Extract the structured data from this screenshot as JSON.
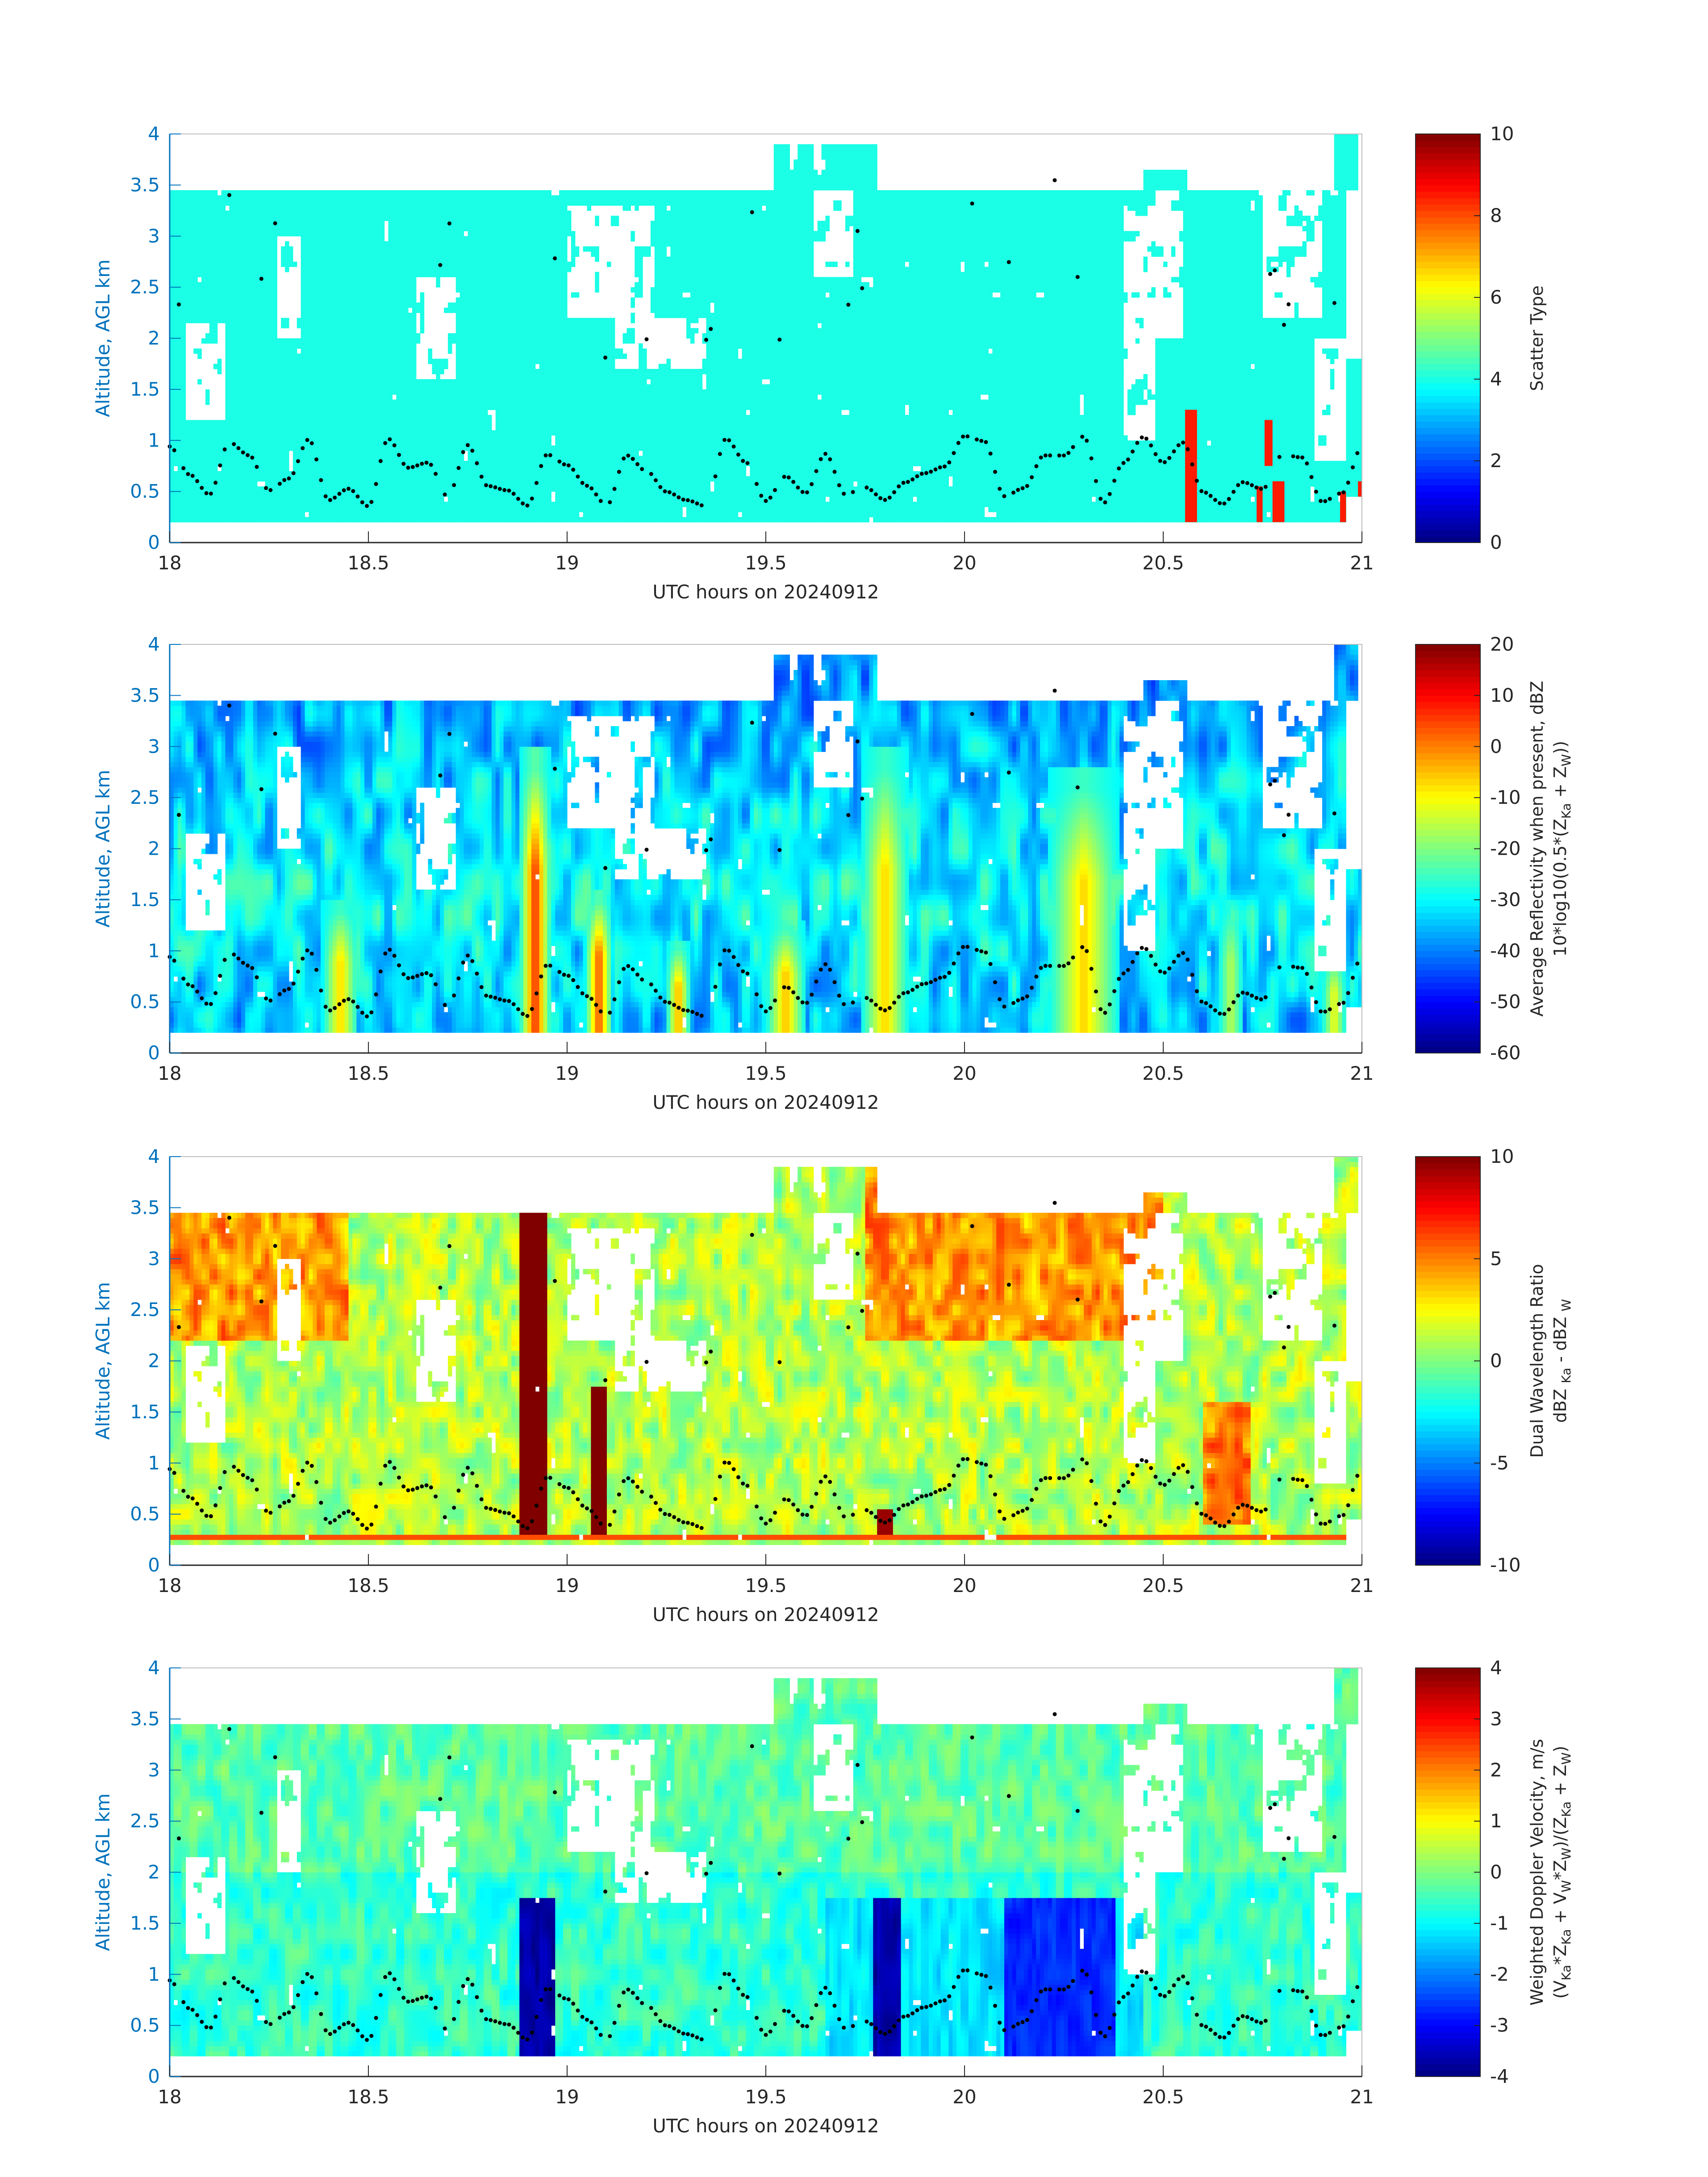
{
  "figure": {
    "panels": [
      {
        "id": "scatter-type",
        "xlabel": "UTC hours on 20240912",
        "ylabel": "Altitude, AGL km",
        "cbar_lines": [
          [
            {
              "t": "Scatter Type"
            }
          ]
        ],
        "cbar_ticks": [
          0,
          2,
          4,
          6,
          8,
          10
        ],
        "clim": [
          0,
          10
        ]
      },
      {
        "id": "reflectivity",
        "xlabel": "UTC hours on 20240912",
        "ylabel": "Altitude, AGL km",
        "cbar_lines": [
          [
            {
              "t": "Average Reflectivity when present, dBZ"
            }
          ],
          [
            {
              "t": "10*log10(0.5*(Z"
            },
            {
              "t": "Ka",
              "s": "sub"
            },
            {
              "t": " + Z"
            },
            {
              "t": "W",
              "s": "sub"
            },
            {
              "t": "))"
            }
          ]
        ],
        "cbar_ticks": [
          -60,
          -50,
          -40,
          -30,
          -20,
          -10,
          0,
          10,
          20
        ],
        "clim": [
          -60,
          20
        ]
      },
      {
        "id": "dwr",
        "xlabel": "UTC hours on 20240912",
        "ylabel": "Altitude, AGL km",
        "cbar_lines": [
          [
            {
              "t": "Dual Wavelength Ratio"
            }
          ],
          [
            {
              "t": "dBZ "
            },
            {
              "t": "Ka",
              "s": "sub"
            },
            {
              "t": " - dBZ "
            },
            {
              "t": "W",
              "s": "sub"
            }
          ]
        ],
        "cbar_ticks": [
          -10,
          -5,
          0,
          5,
          10
        ],
        "clim": [
          -10,
          10
        ]
      },
      {
        "id": "doppler",
        "xlabel": "UTC hours on 20240912",
        "ylabel": "Altitude, AGL km",
        "cbar_lines": [
          [
            {
              "t": "Weighted Doppler Velocity, m/s"
            }
          ],
          [
            {
              "t": "(V"
            },
            {
              "t": "Ka",
              "s": "sub"
            },
            {
              "t": "*Z"
            },
            {
              "t": "Ka",
              "s": "sub"
            },
            {
              "t": " + V"
            },
            {
              "t": "W",
              "s": "sub"
            },
            {
              "t": "*Z"
            },
            {
              "t": "W",
              "s": "sub"
            },
            {
              "t": ")/(Z"
            },
            {
              "t": "Ka",
              "s": "sub"
            },
            {
              "t": " + Z"
            },
            {
              "t": "W",
              "s": "sub"
            },
            {
              "t": ")"
            }
          ]
        ],
        "cbar_ticks": [
          -4,
          -3,
          -2,
          -1,
          0,
          1,
          2,
          3,
          4
        ],
        "clim": [
          -4,
          4
        ]
      }
    ]
  },
  "chart_data": [
    {
      "type": "heatmap",
      "xlabel": "UTC hours on 20240912",
      "ylabel": "Altitude, AGL km",
      "xlim": [
        18,
        21
      ],
      "ylim": [
        0,
        4
      ],
      "xticks": [
        18,
        18.5,
        19,
        19.5,
        20,
        20.5,
        21
      ],
      "yticks": [
        0,
        0.5,
        1,
        1.5,
        2,
        2.5,
        3,
        3.5,
        4
      ],
      "colorbar_label": "Scatter Type",
      "clim": [
        0,
        10
      ],
      "colormap": "jet",
      "dominant_value": 4,
      "echo_base_km": 0.2,
      "echo_top_km": 3.45,
      "high_value_columns": [
        {
          "x": [
            20.555,
            20.585
          ],
          "y": [
            0.2,
            1.3
          ],
          "value": 8.5
        },
        {
          "x": [
            20.735,
            20.75
          ],
          "y": [
            0.2,
            0.55
          ],
          "value": 8.5
        },
        {
          "x": [
            20.755,
            20.775
          ],
          "y": [
            0.75,
            1.2
          ],
          "value": 8.5
        },
        {
          "x": [
            20.775,
            20.805
          ],
          "y": [
            0.2,
            0.6
          ],
          "value": 8.5
        },
        {
          "x": [
            20.945,
            20.96
          ],
          "y": [
            0.2,
            0.5
          ],
          "value": 8.5
        },
        {
          "x": [
            20.99,
            21.0
          ],
          "y": [
            0.45,
            0.6
          ],
          "value": 8.5
        }
      ],
      "overlay": "black dots: cloud-base track"
    },
    {
      "type": "heatmap",
      "xlabel": "UTC hours on 20240912",
      "ylabel": "Altitude, AGL km",
      "xlim": [
        18,
        21
      ],
      "ylim": [
        0,
        4
      ],
      "xticks": [
        18,
        18.5,
        19,
        19.5,
        20,
        20.5,
        21
      ],
      "yticks": [
        0,
        0.5,
        1,
        1.5,
        2,
        2.5,
        3,
        3.5,
        4
      ],
      "colorbar_label": "Average Reflectivity when present, dBZ 10*log10(0.5*(ZKa + ZW))",
      "clim": [
        -60,
        20
      ],
      "colormap": "jet",
      "background_value": -38,
      "features": [
        {
          "x": 18.43,
          "half_width": 0.045,
          "top_km": 1.5,
          "peak": -6
        },
        {
          "x": 18.92,
          "half_width": 0.04,
          "top_km": 3.0,
          "peak": 8
        },
        {
          "x": 19.08,
          "half_width": 0.035,
          "top_km": 1.6,
          "peak": 5
        },
        {
          "x": 19.28,
          "half_width": 0.03,
          "top_km": 1.1,
          "peak": -2
        },
        {
          "x": 19.55,
          "half_width": 0.05,
          "top_km": 1.3,
          "peak": -4
        },
        {
          "x": 19.8,
          "half_width": 0.06,
          "top_km": 3.0,
          "peak": -6
        },
        {
          "x": 20.3,
          "half_width": 0.09,
          "top_km": 2.8,
          "peak": -6
        },
        {
          "x": 20.67,
          "half_width": 0.03,
          "top_km": 1.5,
          "peak": -15
        },
        {
          "x": 20.93,
          "half_width": 0.03,
          "top_km": 1.0,
          "peak": -10
        }
      ],
      "overlay": "black dots: cloud-base track"
    },
    {
      "type": "heatmap",
      "xlabel": "UTC hours on 20240912",
      "ylabel": "Altitude, AGL km",
      "xlim": [
        18,
        21
      ],
      "ylim": [
        0,
        4
      ],
      "xticks": [
        18,
        18.5,
        19,
        19.5,
        20,
        20.5,
        21
      ],
      "yticks": [
        0,
        0.5,
        1,
        1.5,
        2,
        2.5,
        3,
        3.5,
        4
      ],
      "colorbar_label": "Dual Wavelength Ratio dBZ Ka - dBZ W",
      "clim": [
        -10,
        10
      ],
      "colormap": "jet",
      "base_row_km": 0.27,
      "base_row_value": 6,
      "features": [
        {
          "x": [
            18.95,
            18.88
          ],
          "y": [
            0.27,
            3.45
          ],
          "value": 10
        },
        {
          "x": [
            19.065,
            19.095
          ],
          "y": [
            0.27,
            1.75
          ],
          "value": 10
        },
        {
          "x": [
            19.78,
            19.82
          ],
          "y": [
            0.27,
            0.55
          ],
          "value": 9.5
        }
      ],
      "overlay": "black dots: cloud-base track"
    },
    {
      "type": "heatmap",
      "xlabel": "UTC hours on 20240912",
      "ylabel": "Altitude, AGL km",
      "xlim": [
        18,
        21
      ],
      "ylim": [
        0,
        4
      ],
      "xticks": [
        18,
        18.5,
        19,
        19.5,
        20,
        20.5,
        21
      ],
      "yticks": [
        0,
        0.5,
        1,
        1.5,
        2,
        2.5,
        3,
        3.5,
        4
      ],
      "colorbar_label": "Weighted Doppler Velocity, m/s (VKa*ZKa + VW*ZW)/(ZKa + ZW)",
      "clim": [
        -4,
        4
      ],
      "colormap": "jet",
      "background_value": -0.6,
      "features": [
        {
          "x": [
            18.88,
            18.97
          ],
          "y": [
            0.2,
            1.75
          ],
          "value": -4
        },
        {
          "x": [
            19.77,
            19.84
          ],
          "y": [
            0.2,
            1.75
          ],
          "value": -4
        },
        {
          "x": [
            20.1,
            20.38
          ],
          "y": [
            0.2,
            1.75
          ],
          "value": -3
        }
      ],
      "overlay": "black dots: cloud-base track"
    }
  ]
}
